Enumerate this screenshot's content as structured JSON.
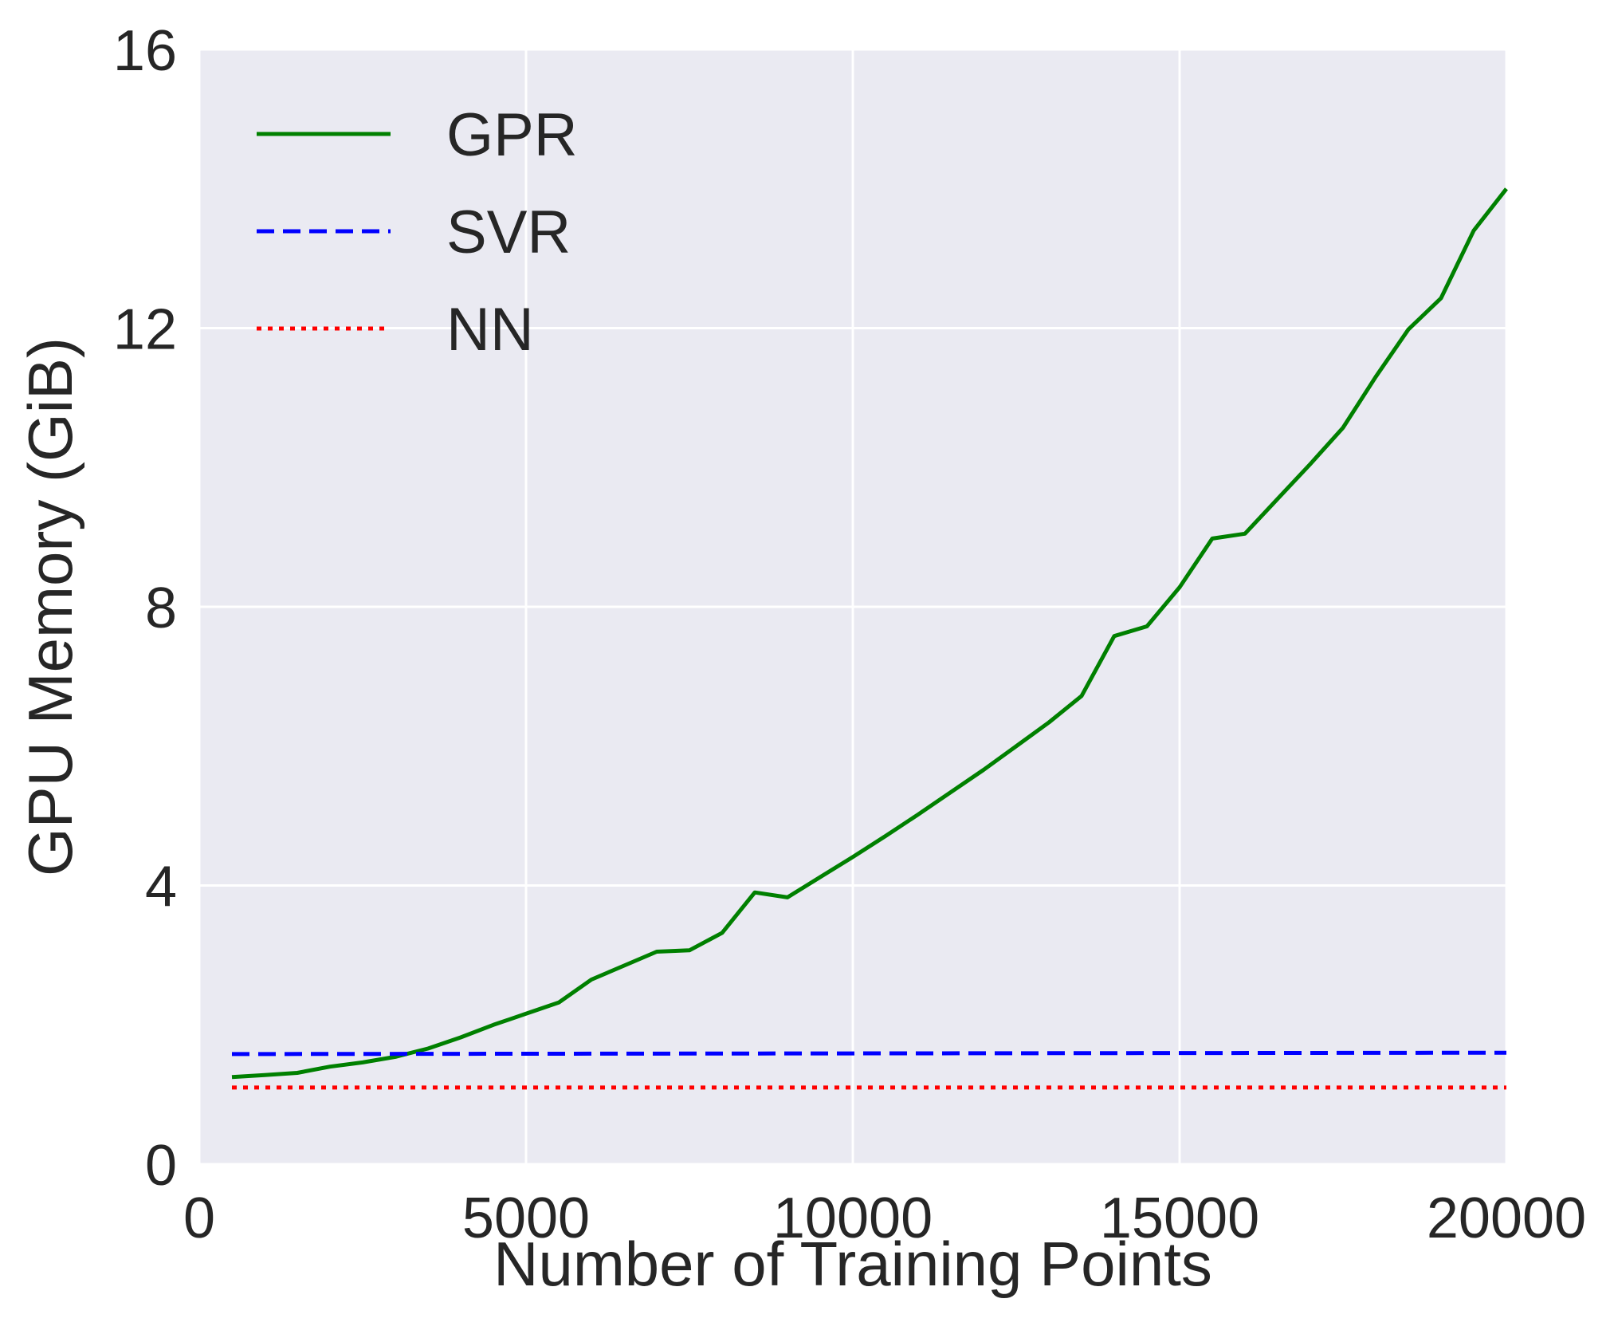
{
  "chart_data": {
    "type": "line",
    "title": "",
    "xlabel": "Number of Training Points",
    "ylabel": "GPU Memory (GiB)",
    "xlim": [
      0,
      20000
    ],
    "ylim": [
      0,
      16
    ],
    "xticks": [
      0,
      5000,
      10000,
      15000,
      20000
    ],
    "yticks": [
      0,
      4,
      8,
      12,
      16
    ],
    "xtick_labels": [
      "0",
      "5000",
      "10000",
      "15000",
      "20000"
    ],
    "ytick_labels": [
      "0",
      "4",
      "8",
      "12",
      "16"
    ],
    "grid": true,
    "legend_position": "upper-left",
    "background": "#eaeaf2",
    "series": [
      {
        "name": "GPR",
        "color": "#008000",
        "style": "solid",
        "x": [
          500,
          1000,
          1500,
          2000,
          2500,
          3000,
          3500,
          4000,
          4500,
          5000,
          5500,
          6000,
          6500,
          7000,
          7500,
          8000,
          8500,
          9000,
          9500,
          10000,
          10500,
          11000,
          11500,
          12000,
          12500,
          13000,
          13500,
          14000,
          14500,
          15000,
          15500,
          16000,
          16500,
          17000,
          17500,
          18000,
          18500,
          19000,
          19500,
          20000
        ],
        "y": [
          1.25,
          1.28,
          1.31,
          1.4,
          1.46,
          1.54,
          1.66,
          1.82,
          2.0,
          2.16,
          2.32,
          2.65,
          2.85,
          3.05,
          3.07,
          3.32,
          3.9,
          3.83,
          4.12,
          4.41,
          4.71,
          5.02,
          5.34,
          5.66,
          6.0,
          6.34,
          6.72,
          7.58,
          7.72,
          8.28,
          8.98,
          9.05,
          9.55,
          10.05,
          10.57,
          11.3,
          11.98,
          12.43,
          13.4,
          14.0
        ]
      },
      {
        "name": "SVR",
        "color": "#0000ff",
        "style": "dashed",
        "x": [
          500,
          20000
        ],
        "y": [
          1.58,
          1.6
        ]
      },
      {
        "name": "NN",
        "color": "#ff0000",
        "style": "dotted",
        "x": [
          500,
          20000
        ],
        "y": [
          1.1,
          1.1
        ]
      }
    ]
  }
}
